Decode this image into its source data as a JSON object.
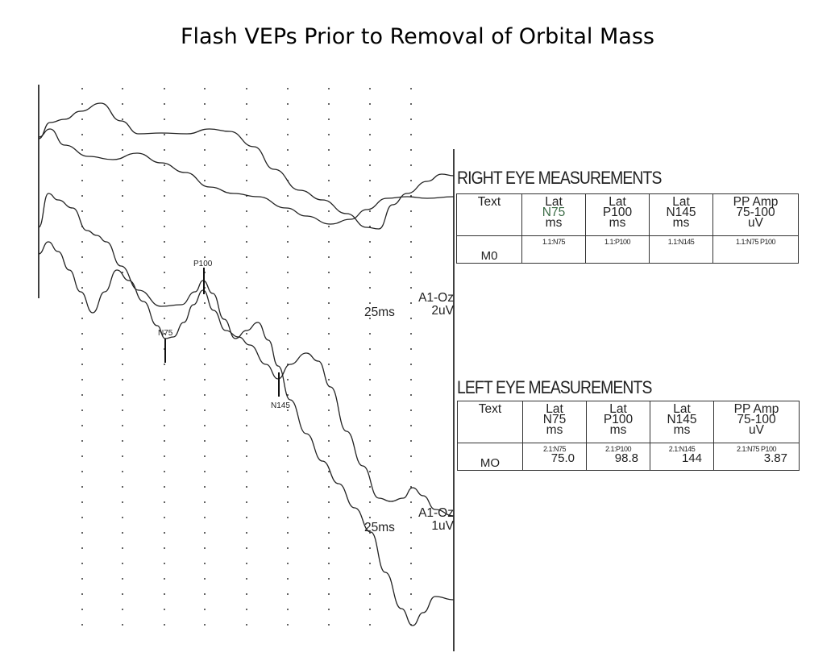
{
  "title": "Flash VEPs Prior to Removal of Orbital Mass",
  "right_eye": {
    "heading": "RIGHT EYE MEASUREMENTS",
    "headers": [
      [
        "Text"
      ],
      [
        "Lat",
        "N75",
        "ms"
      ],
      [
        "Lat",
        "P100",
        "ms"
      ],
      [
        "Lat",
        "N145",
        "ms"
      ],
      [
        "PP Amp",
        "75-100",
        "uV"
      ]
    ],
    "row": {
      "label": "M0",
      "subs": [
        "1.1:N75",
        "1.1:P100",
        "1.1:N145",
        "1.1:N75 P100"
      ],
      "values": [
        "",
        "",
        "",
        ""
      ]
    }
  },
  "left_eye": {
    "heading": "LEFT EYE MEASUREMENTS",
    "headers": [
      [
        "Text"
      ],
      [
        "Lat",
        "N75",
        "ms"
      ],
      [
        "Lat",
        "P100",
        "ms"
      ],
      [
        "Lat",
        "N145",
        "ms"
      ],
      [
        "PP Amp",
        "75-100",
        "uV"
      ]
    ],
    "row": {
      "label": "MO",
      "subs": [
        "2.1:N75",
        "2.1:P100",
        "2.1:N145",
        "2.1:N75 P100"
      ],
      "values": [
        "75.0",
        "98.8",
        "144",
        "3.87"
      ]
    }
  },
  "calibration": {
    "top": {
      "time": "25ms",
      "channel": "A1-Oz",
      "amp": "2uV"
    },
    "bottom": {
      "time": "25ms",
      "channel": "A1-Oz",
      "amp": "1uV"
    }
  },
  "markers": [
    "P100",
    "N75",
    "N145"
  ],
  "chart_data": {
    "type": "line",
    "title": "Flash VEPs Prior to Removal of Orbital Mass",
    "description_units": "latency in ms (25 ms per division), amplitude in uV",
    "panels": [
      {
        "name": "",
        "scale": "25ms / 2uV",
        "channel": "A1-Oz",
        "series_count": 2,
        "grid": true
      },
      {
        "name": "",
        "scale": "25ms / 1uV",
        "channel": "A1-Oz",
        "series_count": 2,
        "grid": true,
        "peaks": [
          {
            "label": "N75",
            "latency_ms": 75.0
          },
          {
            "label": "P100",
            "latency_ms": 98.8
          },
          {
            "label": "N145",
            "latency_ms": 144
          }
        ],
        "pp_amp_75_100_uV": 3.87
      }
    ]
  }
}
